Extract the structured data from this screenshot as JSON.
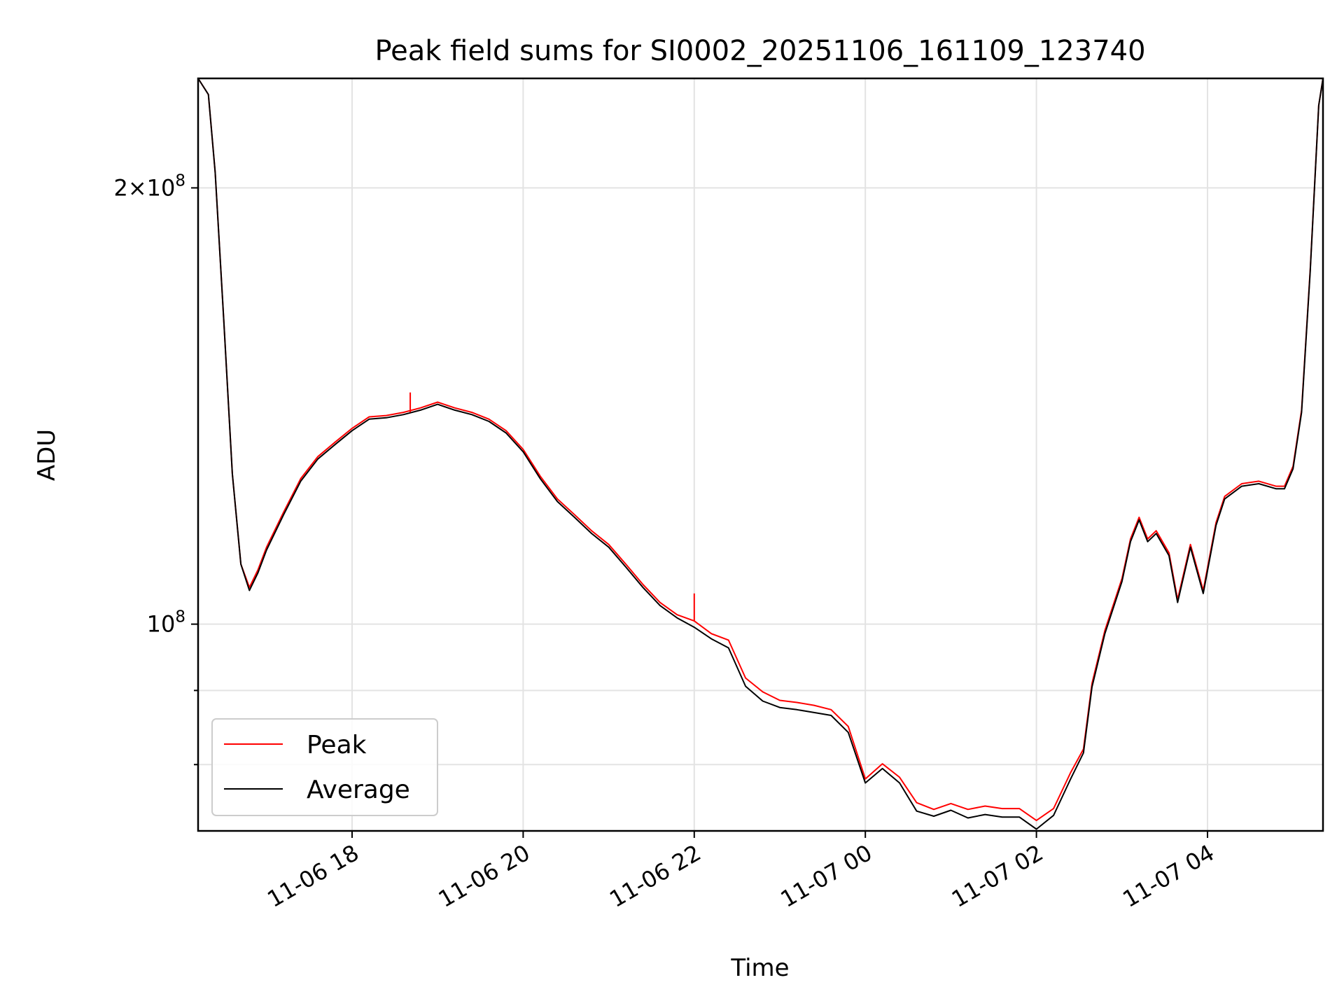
{
  "chart_data": {
    "type": "line",
    "title": "Peak field sums for SI0002_20251106_161109_123740",
    "xlabel": "Time",
    "ylabel": "ADU",
    "yscale": "log",
    "grid": true,
    "legend_position": "lower-left",
    "xlim_hours": [
      16.2,
      5.35
    ],
    "ylim": [
      72000000,
      238000000
    ],
    "x_ticks": [
      {
        "hour": 18,
        "label": "11-06 18"
      },
      {
        "hour": 20,
        "label": "11-06 20"
      },
      {
        "hour": 22,
        "label": "11-06 22"
      },
      {
        "hour": 24,
        "label": "11-07 00"
      },
      {
        "hour": 26,
        "label": "11-07 02"
      },
      {
        "hour": 28,
        "label": "11-07 04"
      }
    ],
    "y_major_ticks": [
      {
        "value": 100000000,
        "base": "10",
        "exp": "8"
      },
      {
        "value": 200000000,
        "base": "2×10",
        "exp": "8"
      }
    ],
    "y_minor_ticks": [
      80000000,
      90000000
    ],
    "x_hours_since_midnight_nov6": [
      16.2,
      16.32,
      16.4,
      16.5,
      16.6,
      16.7,
      16.8,
      16.8,
      16.9,
      17.0,
      17.2,
      17.4,
      17.6,
      17.8,
      18.0,
      18.2,
      18.4,
      18.6,
      18.8,
      19.0,
      19.2,
      19.4,
      19.6,
      19.8,
      20.0,
      20.2,
      20.4,
      20.6,
      20.8,
      21.0,
      21.2,
      21.4,
      21.6,
      21.8,
      22.0,
      22.2,
      22.4,
      22.6,
      22.8,
      23.0,
      23.2,
      23.4,
      23.6,
      23.8,
      24.0,
      24.2,
      24.4,
      24.6,
      24.8,
      25.0,
      25.2,
      25.4,
      25.6,
      25.8,
      26.0,
      26.2,
      26.4,
      26.55,
      26.65,
      26.8,
      27.0,
      27.1,
      27.2,
      27.3,
      27.4,
      27.55,
      27.65,
      27.8,
      27.95,
      28.1,
      28.2,
      28.4,
      28.6,
      28.8,
      28.9,
      29.0,
      29.1,
      29.2,
      29.3,
      29.35
    ],
    "series": [
      {
        "name": "Average",
        "color": "#000000",
        "values": [
          238000000,
          232000000,
          205000000,
          162000000,
          127000000,
          110000000,
          105500000,
          105500000,
          108500000,
          112500000,
          119000000,
          125500000,
          130000000,
          133000000,
          136000000,
          138500000,
          138800000,
          139500000,
          140500000,
          141800000,
          140500000,
          139500000,
          138000000,
          135500000,
          131500000,
          126000000,
          121500000,
          118500000,
          115500000,
          113000000,
          109500000,
          106000000,
          103000000,
          101000000,
          99500000,
          97700000,
          96300000,
          90600000,
          88500000,
          87600000,
          87300000,
          86900000,
          86500000,
          84200000,
          77700000,
          79500000,
          77700000,
          74300000,
          73700000,
          74400000,
          73500000,
          73900000,
          73600000,
          73600000,
          72200000,
          73800000,
          78200000,
          81500000,
          90500000,
          98500000,
          107000000,
          114000000,
          118000000,
          114000000,
          115500000,
          111500000,
          103500000,
          113000000,
          105000000,
          117000000,
          122000000,
          124500000,
          125000000,
          124000000,
          124000000,
          128000000,
          140000000,
          175000000,
          228000000,
          238000000
        ]
      },
      {
        "name": "Peak",
        "color": "#ff0000",
        "values": [
          238000000,
          232000000,
          205000000,
          162000000,
          127000000,
          110000000,
          106000000,
          106000000,
          109000000,
          113000000,
          119500000,
          126000000,
          130500000,
          133500000,
          136500000,
          139000000,
          139300000,
          140000000,
          141000000,
          142300000,
          141000000,
          140000000,
          138500000,
          136000000,
          132000000,
          126500000,
          122000000,
          119000000,
          116000000,
          113500000,
          110000000,
          106500000,
          103500000,
          101500000,
          100500000,
          98500000,
          97500000,
          91800000,
          89800000,
          88600000,
          88300000,
          87900000,
          87300000,
          85000000,
          78200000,
          80100000,
          78400000,
          75300000,
          74500000,
          75200000,
          74500000,
          74900000,
          74600000,
          74600000,
          73200000,
          74600000,
          79000000,
          82000000,
          91000000,
          99000000,
          107500000,
          114500000,
          118500000,
          114500000,
          116000000,
          112000000,
          104000000,
          113500000,
          105500000,
          117500000,
          122500000,
          125000000,
          125500000,
          124500000,
          124500000,
          128500000,
          140500000,
          175500000,
          228000000,
          238000000
        ]
      }
    ],
    "annotations": [
      {
        "hour": 18.68,
        "value": 144500000
      },
      {
        "hour": 22.0,
        "value": 105000000
      }
    ]
  }
}
